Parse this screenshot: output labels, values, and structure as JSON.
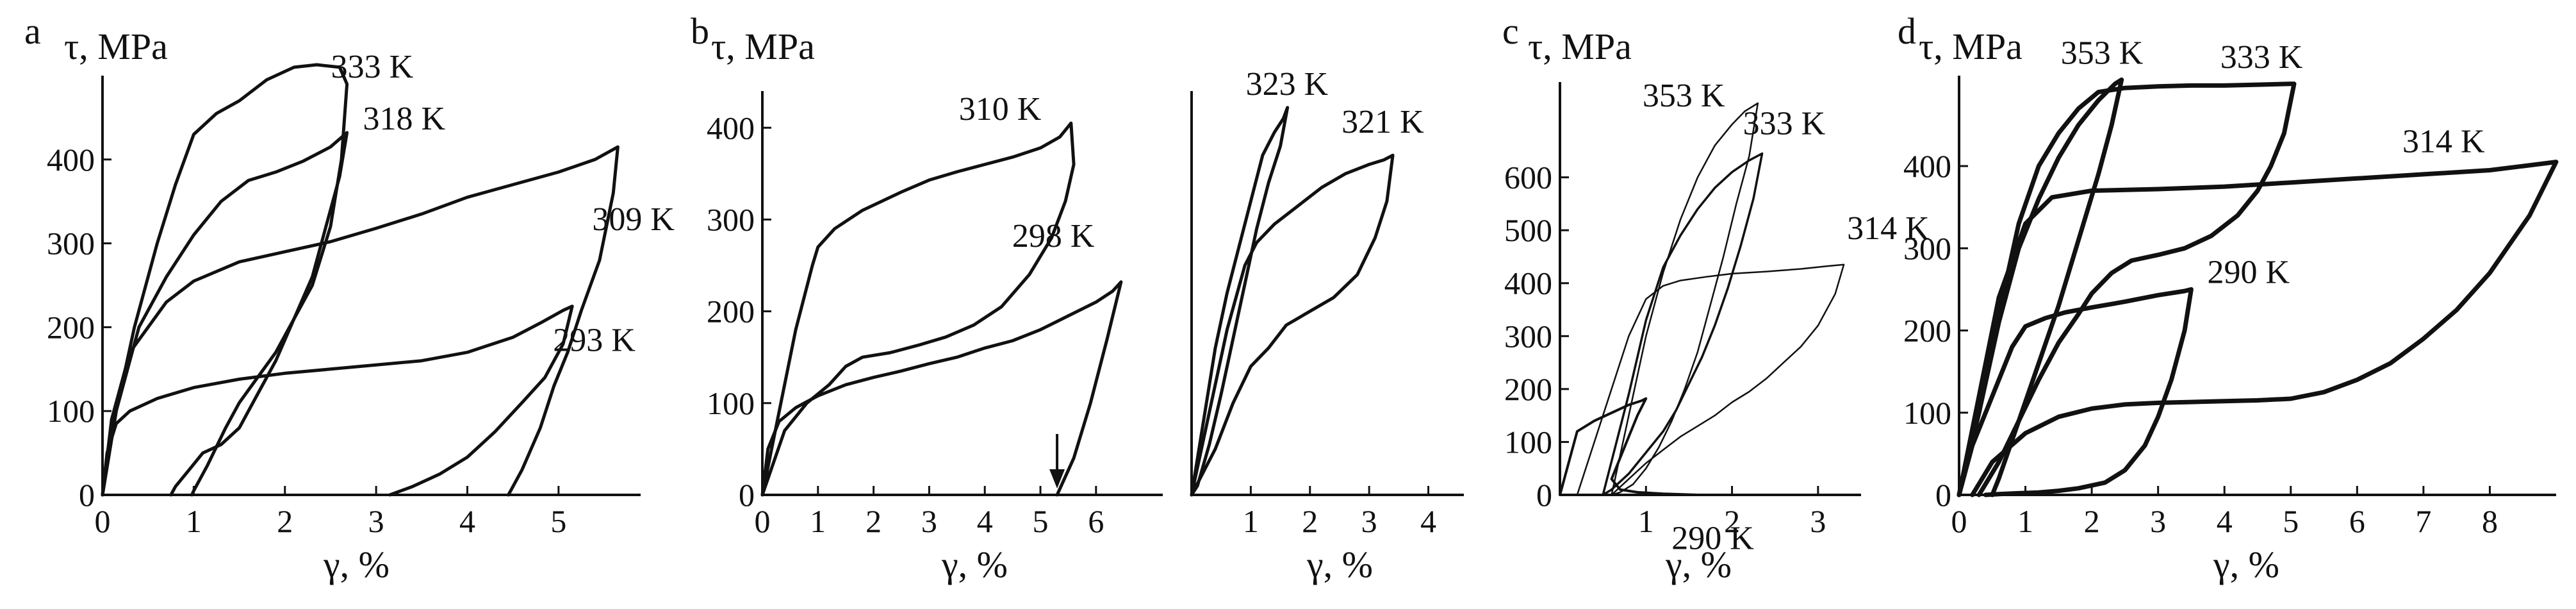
{
  "chart_data": [
    {
      "type": "line",
      "panel": "a",
      "ylabel": "τ, MPa",
      "xlabel": "γ, %",
      "xlim": [
        0,
        5.9
      ],
      "ylim": [
        0,
        500
      ],
      "xticks": [
        0,
        1,
        2,
        3,
        4,
        5
      ],
      "yticks": [
        0,
        100,
        200,
        300,
        400
      ],
      "grid": false,
      "series": [
        {
          "name": "333 K",
          "x": [
            0,
            0.15,
            0.35,
            0.6,
            0.8,
            1.0,
            1.25,
            1.5,
            1.8,
            2.1,
            2.35,
            2.6,
            2.68,
            2.62,
            2.5,
            2.3,
            2.1,
            1.9,
            1.7,
            1.5,
            1.35,
            1.15,
            1.0,
            0.98
          ],
          "y": [
            0,
            100,
            200,
            300,
            370,
            430,
            455,
            470,
            495,
            510,
            513,
            510,
            490,
            400,
            320,
            250,
            210,
            170,
            140,
            110,
            80,
            35,
            5,
            0
          ]
        },
        {
          "name": "318 K",
          "x": [
            0,
            0.15,
            0.4,
            0.7,
            1.0,
            1.3,
            1.6,
            1.9,
            2.2,
            2.5,
            2.68,
            2.6,
            2.45,
            2.3,
            2.1,
            1.9,
            1.7,
            1.5,
            1.3,
            1.1,
            0.95,
            0.8,
            0.75
          ],
          "y": [
            0,
            100,
            200,
            260,
            310,
            350,
            375,
            385,
            398,
            415,
            432,
            380,
            320,
            260,
            210,
            160,
            120,
            80,
            60,
            50,
            30,
            10,
            0
          ]
        },
        {
          "name": "309 K",
          "x": [
            0,
            0.1,
            0.3,
            0.7,
            1.0,
            1.5,
            2.0,
            2.5,
            3.0,
            3.5,
            4.0,
            4.5,
            5.0,
            5.4,
            5.65,
            5.6,
            5.45,
            5.25,
            5.1,
            4.95,
            4.8,
            4.6,
            4.45
          ],
          "y": [
            0,
            90,
            170,
            230,
            255,
            278,
            290,
            302,
            318,
            335,
            355,
            370,
            385,
            400,
            415,
            360,
            280,
            220,
            170,
            130,
            80,
            30,
            0
          ]
        },
        {
          "name": "293 K",
          "x": [
            0,
            0.05,
            0.15,
            0.3,
            0.6,
            1.0,
            1.5,
            2.0,
            2.5,
            3.0,
            3.5,
            4.0,
            4.5,
            4.8,
            5.05,
            5.15,
            5.05,
            4.85,
            4.6,
            4.3,
            4.0,
            3.7,
            3.4,
            3.15
          ],
          "y": [
            0,
            50,
            85,
            100,
            115,
            128,
            138,
            145,
            150,
            155,
            160,
            170,
            188,
            205,
            220,
            225,
            180,
            140,
            110,
            75,
            45,
            25,
            10,
            0
          ]
        }
      ],
      "annotations": [
        "333 K",
        "318 K",
        "309 K",
        "293 K"
      ]
    },
    {
      "type": "line",
      "panel": "b",
      "ylabel": "τ, MPa",
      "xlabel": "γ, %",
      "xlim": [
        0,
        7.2
      ],
      "ylim": [
        0,
        440
      ],
      "xticks": [
        0,
        1,
        2,
        3,
        4,
        5,
        6
      ],
      "yticks": [
        0,
        100,
        200,
        300,
        400
      ],
      "grid": false,
      "arrow_x": 5.3,
      "series": [
        {
          "name": "310 K",
          "x": [
            0,
            0.3,
            0.6,
            0.9,
            1.0,
            1.3,
            1.8,
            2.5,
            3.0,
            3.5,
            4.0,
            4.5,
            5.0,
            5.35,
            5.55,
            5.6,
            5.45,
            5.2,
            4.8,
            4.3,
            3.8,
            3.3,
            2.8,
            2.3,
            1.8,
            1.5,
            1.2,
            0.8,
            0.4,
            0
          ],
          "y": [
            0,
            90,
            180,
            250,
            270,
            290,
            310,
            330,
            343,
            352,
            360,
            368,
            378,
            390,
            405,
            360,
            320,
            280,
            240,
            205,
            185,
            172,
            163,
            155,
            150,
            140,
            120,
            100,
            70,
            0
          ]
        },
        {
          "name": "298 K",
          "x": [
            0,
            0.1,
            0.3,
            0.6,
            1.0,
            1.5,
            2.0,
            2.5,
            3.0,
            3.5,
            4.0,
            4.5,
            5.0,
            5.5,
            6.0,
            6.3,
            6.45,
            6.2,
            5.9,
            5.6,
            5.3
          ],
          "y": [
            0,
            50,
            80,
            95,
            108,
            120,
            128,
            135,
            143,
            150,
            160,
            168,
            180,
            195,
            210,
            222,
            232,
            170,
            100,
            40,
            0
          ]
        }
      ],
      "annotations": [
        "310 K",
        "298 K"
      ]
    },
    {
      "type": "line",
      "panel": "b-right",
      "ylabel": "",
      "xlabel": "γ, %",
      "xlim": [
        0,
        4.6
      ],
      "ylim": [
        0,
        440
      ],
      "xticks": [
        1,
        2,
        3,
        4
      ],
      "yticks": [],
      "grid": false,
      "series": [
        {
          "name": "323 K",
          "x": [
            0,
            0.2,
            0.4,
            0.6,
            0.8,
            1.0,
            1.2,
            1.4,
            1.55,
            1.62,
            1.5,
            1.3,
            1.1,
            0.9,
            0.7,
            0.5,
            0.3,
            0.1,
            0
          ],
          "y": [
            0,
            80,
            160,
            220,
            270,
            320,
            370,
            395,
            410,
            422,
            380,
            340,
            290,
            230,
            170,
            110,
            55,
            10,
            0
          ]
        },
        {
          "name": "321 K",
          "x": [
            0,
            0.3,
            0.6,
            0.9,
            1.1,
            1.4,
            1.8,
            2.2,
            2.6,
            3.0,
            3.25,
            3.4,
            3.3,
            3.1,
            2.8,
            2.4,
            2.0,
            1.6,
            1.3,
            1.0,
            0.7,
            0.4,
            0
          ],
          "y": [
            0,
            90,
            180,
            250,
            275,
            295,
            315,
            335,
            350,
            360,
            365,
            370,
            320,
            280,
            240,
            215,
            200,
            185,
            160,
            140,
            100,
            50,
            0
          ]
        }
      ],
      "annotations": [
        "323 K",
        "321 K"
      ]
    },
    {
      "type": "line",
      "panel": "c",
      "ylabel": "τ, MPa",
      "xlabel": "γ, %",
      "xlim": [
        0,
        3.5
      ],
      "ylim": [
        0,
        780
      ],
      "xticks": [
        1,
        2,
        3
      ],
      "yticks": [
        0,
        100,
        200,
        300,
        400,
        500,
        600
      ],
      "grid": false,
      "series": [
        {
          "name": "353 K",
          "x": [
            0.6,
            0.8,
            1.0,
            1.2,
            1.4,
            1.6,
            1.8,
            2.0,
            2.15,
            2.3,
            2.2,
            2.05,
            1.9,
            1.75,
            1.6,
            1.45,
            1.3,
            1.15,
            1.0,
            0.85,
            0.7,
            0.6
          ],
          "y": [
            0,
            150,
            300,
            420,
            520,
            600,
            660,
            700,
            725,
            740,
            640,
            550,
            450,
            360,
            270,
            200,
            140,
            90,
            50,
            20,
            5,
            0
          ]
        },
        {
          "name": "333 K",
          "x": [
            0.5,
            0.8,
            1.0,
            1.2,
            1.4,
            1.6,
            1.8,
            2.0,
            2.2,
            2.35,
            2.25,
            2.1,
            1.95,
            1.8,
            1.65,
            1.5,
            1.35,
            1.2,
            1.0,
            0.8,
            0.6,
            0.5
          ],
          "y": [
            0,
            190,
            330,
            430,
            490,
            540,
            580,
            610,
            632,
            645,
            560,
            470,
            390,
            320,
            260,
            210,
            160,
            120,
            80,
            40,
            10,
            0
          ]
        },
        {
          "name": "314 K",
          "x": [
            0.2,
            0.5,
            0.8,
            1.0,
            1.2,
            1.4,
            1.7,
            2.0,
            2.4,
            2.8,
            3.1,
            3.3,
            3.2,
            3.0,
            2.8,
            2.6,
            2.4,
            2.2,
            2.0,
            1.8,
            1.6,
            1.4,
            1.2,
            1.0,
            0.8,
            0.6
          ],
          "y": [
            0,
            150,
            300,
            370,
            395,
            405,
            412,
            418,
            422,
            427,
            432,
            435,
            380,
            320,
            280,
            250,
            220,
            195,
            175,
            150,
            130,
            110,
            85,
            60,
            30,
            0
          ]
        },
        {
          "name": "290 K",
          "x": [
            0.0,
            0.2,
            0.4,
            0.6,
            0.8,
            0.95,
            1.0,
            0.9,
            0.8,
            0.7,
            0.6,
            0.7,
            0.9,
            1.2,
            1.6,
            2.0
          ],
          "y": [
            0,
            120,
            140,
            155,
            170,
            178,
            182,
            150,
            110,
            70,
            30,
            10,
            5,
            2,
            0,
            0
          ]
        }
      ],
      "annotations": [
        "353 K",
        "333 K",
        "314 K",
        "290 K"
      ]
    },
    {
      "type": "line",
      "panel": "d",
      "ylabel": "τ, MPa",
      "xlabel": "γ, %",
      "xlim": [
        0,
        9.0
      ],
      "ylim": [
        0,
        510
      ],
      "xticks": [
        0,
        1,
        2,
        3,
        4,
        5,
        6,
        7,
        8
      ],
      "yticks": [
        0,
        100,
        200,
        300,
        400
      ],
      "grid": false,
      "series": [
        {
          "name": "353 K",
          "x": [
            0,
            0.3,
            0.6,
            0.9,
            1.2,
            1.5,
            1.8,
            2.1,
            2.35,
            2.45,
            2.3,
            2.1,
            1.8,
            1.5,
            1.2,
            0.9,
            0.6,
            0.5
          ],
          "y": [
            0,
            100,
            210,
            300,
            360,
            410,
            450,
            480,
            500,
            505,
            450,
            390,
            310,
            230,
            160,
            90,
            20,
            0
          ]
        },
        {
          "name": "333 K",
          "x": [
            0,
            0.3,
            0.6,
            0.9,
            1.2,
            1.5,
            1.8,
            2.1,
            2.5,
            3.0,
            3.5,
            4.0,
            4.5,
            5.0,
            5.05,
            4.9,
            4.7,
            4.5,
            4.2,
            3.8,
            3.4,
            3.0,
            2.6,
            2.3,
            2.0,
            1.8,
            1.5,
            1.2,
            0.9,
            0.6,
            0.3
          ],
          "y": [
            0,
            100,
            220,
            330,
            400,
            440,
            470,
            490,
            495,
            497,
            498,
            498,
            499,
            500,
            500,
            440,
            400,
            370,
            340,
            315,
            300,
            292,
            285,
            270,
            245,
            220,
            185,
            140,
            90,
            40,
            0
          ]
        },
        {
          "name": "314 K",
          "x": [
            0,
            0.3,
            0.6,
            1.0,
            1.4,
            2.0,
            3.0,
            4.0,
            5.0,
            6.0,
            7.0,
            8.0,
            8.5,
            9.0,
            8.6,
            8.0,
            7.5,
            7.0,
            6.5,
            6.0,
            5.5,
            5.0,
            4.5,
            4.0,
            3.5,
            3.0,
            2.5,
            2.0,
            1.5,
            1.0,
            0.5,
            0.2
          ],
          "y": [
            0,
            120,
            240,
            330,
            362,
            370,
            372,
            375,
            380,
            385,
            390,
            395,
            400,
            405,
            340,
            270,
            225,
            190,
            160,
            140,
            125,
            117,
            115,
            114,
            113,
            112,
            110,
            105,
            95,
            75,
            40,
            0
          ]
        },
        {
          "name": "290 K",
          "x": [
            0,
            0.2,
            0.5,
            0.8,
            1.0,
            1.3,
            1.6,
            2.0,
            2.5,
            3.0,
            3.4,
            3.5,
            3.4,
            3.2,
            3.0,
            2.8,
            2.5,
            2.2,
            1.8,
            1.5,
            1.2,
            0.9,
            0.6,
            0.4
          ],
          "y": [
            0,
            60,
            120,
            180,
            205,
            215,
            222,
            228,
            235,
            243,
            248,
            250,
            200,
            140,
            95,
            60,
            30,
            15,
            8,
            5,
            3,
            2,
            1,
            0
          ]
        }
      ],
      "annotations": [
        "353 K",
        "333 K",
        "314 K",
        "290 K"
      ]
    }
  ]
}
